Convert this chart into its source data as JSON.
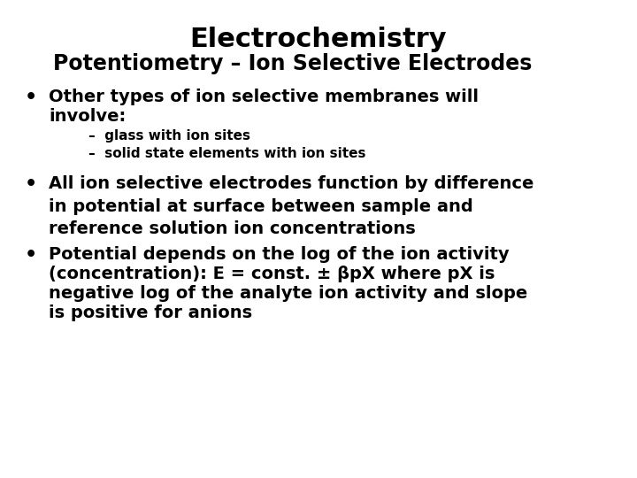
{
  "title": "Electrochemistry",
  "subtitle": "Potentiometry – Ion Selective Electrodes",
  "background_color": "#ffffff",
  "text_color": "#000000",
  "title_fontsize": 22,
  "subtitle_fontsize": 17,
  "body_fontsize": 14,
  "sub_fontsize": 11,
  "bullet1_line1": "Other types of ion selective membranes will",
  "bullet1_line2": "involve:",
  "sub1a": "–  glass with ion sites",
  "sub1b": "–  solid state elements with ion sites",
  "bullet2": "All ion selective electrodes function by difference\nin potential at surface between sample and\nreference solution ion concentrations",
  "bullet3_line1": "Potential depends on the log of the ion activity",
  "bullet3_line2": "(concentration): E = const. ± βpX where pX is",
  "bullet3_line3": "negative log of the analyte ion activity and slope",
  "bullet3_line4": "is positive for anions",
  "font_family": "Arial Narrow",
  "font_family_fallback": "DejaVu Sans Condensed"
}
